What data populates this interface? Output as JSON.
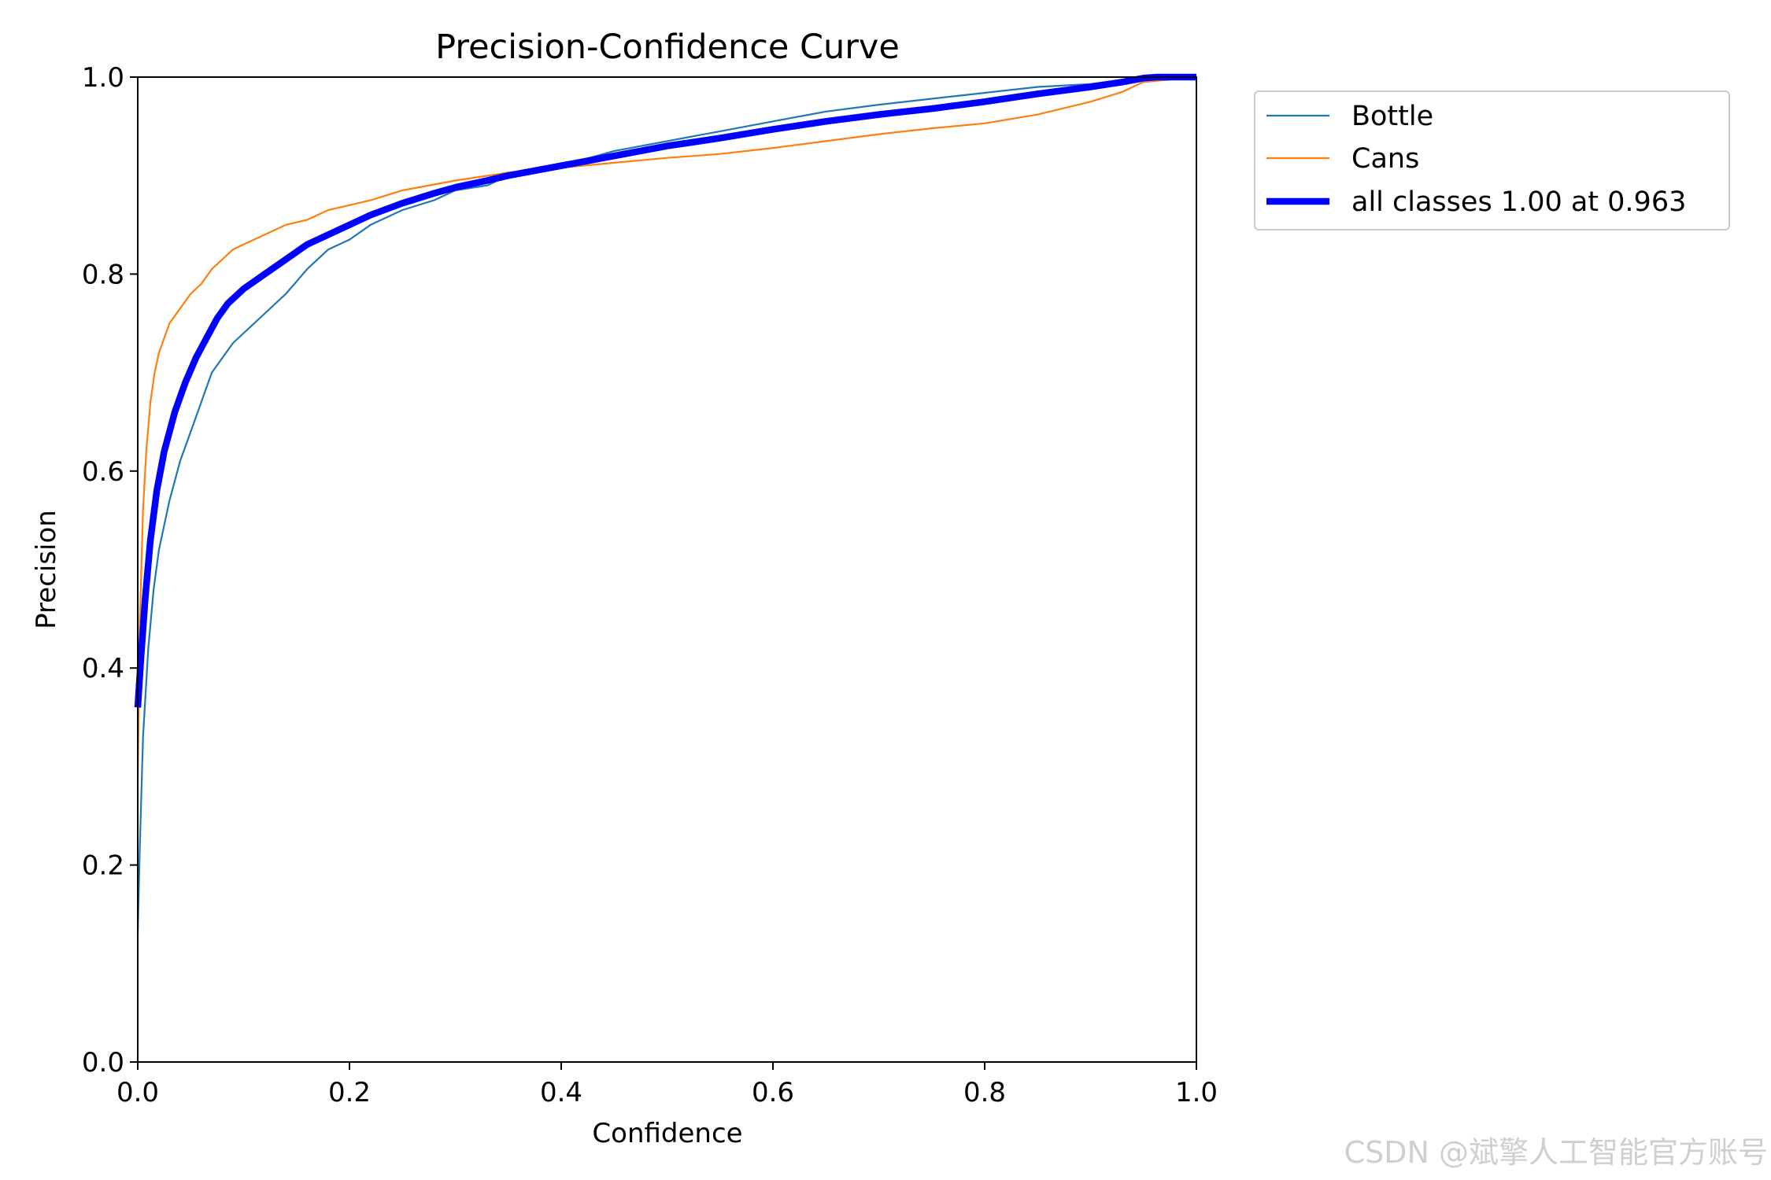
{
  "chart_data": {
    "type": "line",
    "title": "Precision-Confidence Curve",
    "xlabel": "Confidence",
    "ylabel": "Precision",
    "xlim": [
      0.0,
      1.0
    ],
    "ylim": [
      0.0,
      1.0
    ],
    "xticks": [
      "0.0",
      "0.2",
      "0.4",
      "0.6",
      "0.8",
      "1.0"
    ],
    "yticks": [
      "0.0",
      "0.2",
      "0.4",
      "0.6",
      "0.8",
      "1.0"
    ],
    "grid": false,
    "legend_position": "outside-top-right",
    "series": [
      {
        "name": "Bottle",
        "color": "#1f77b4",
        "x": [
          0.0,
          0.002,
          0.005,
          0.01,
          0.015,
          0.02,
          0.03,
          0.04,
          0.05,
          0.06,
          0.07,
          0.08,
          0.09,
          0.1,
          0.12,
          0.14,
          0.16,
          0.18,
          0.2,
          0.22,
          0.25,
          0.28,
          0.3,
          0.33,
          0.35,
          0.4,
          0.45,
          0.5,
          0.55,
          0.6,
          0.65,
          0.7,
          0.75,
          0.8,
          0.85,
          0.9,
          0.93,
          0.95,
          1.0
        ],
        "y": [
          0.13,
          0.22,
          0.33,
          0.42,
          0.48,
          0.52,
          0.57,
          0.61,
          0.64,
          0.67,
          0.7,
          0.715,
          0.73,
          0.74,
          0.76,
          0.78,
          0.805,
          0.825,
          0.835,
          0.85,
          0.865,
          0.875,
          0.885,
          0.89,
          0.9,
          0.91,
          0.925,
          0.935,
          0.945,
          0.955,
          0.965,
          0.972,
          0.978,
          0.984,
          0.99,
          0.993,
          0.997,
          1.0,
          1.0
        ]
      },
      {
        "name": "Cans",
        "color": "#ff7f0e",
        "x": [
          0.0,
          0.002,
          0.005,
          0.008,
          0.012,
          0.016,
          0.02,
          0.03,
          0.04,
          0.05,
          0.06,
          0.07,
          0.08,
          0.09,
          0.1,
          0.12,
          0.14,
          0.16,
          0.18,
          0.2,
          0.22,
          0.25,
          0.3,
          0.35,
          0.4,
          0.45,
          0.5,
          0.55,
          0.6,
          0.65,
          0.7,
          0.75,
          0.8,
          0.85,
          0.9,
          0.93,
          0.95,
          1.0
        ],
        "y": [
          0.29,
          0.45,
          0.56,
          0.62,
          0.67,
          0.7,
          0.72,
          0.75,
          0.765,
          0.78,
          0.79,
          0.805,
          0.815,
          0.825,
          0.83,
          0.84,
          0.85,
          0.855,
          0.865,
          0.87,
          0.875,
          0.885,
          0.895,
          0.903,
          0.908,
          0.913,
          0.918,
          0.922,
          0.928,
          0.935,
          0.942,
          0.948,
          0.953,
          0.962,
          0.975,
          0.985,
          0.995,
          1.0
        ]
      },
      {
        "name": "all classes 1.00 at 0.963",
        "color": "#0000ff",
        "x": [
          0.0,
          0.003,
          0.007,
          0.012,
          0.018,
          0.025,
          0.035,
          0.045,
          0.055,
          0.065,
          0.075,
          0.085,
          0.1,
          0.12,
          0.14,
          0.16,
          0.18,
          0.2,
          0.22,
          0.25,
          0.28,
          0.3,
          0.33,
          0.35,
          0.4,
          0.45,
          0.5,
          0.55,
          0.6,
          0.65,
          0.7,
          0.75,
          0.8,
          0.85,
          0.9,
          0.93,
          0.95,
          0.963,
          1.0
        ],
        "y": [
          0.36,
          0.41,
          0.47,
          0.53,
          0.58,
          0.62,
          0.66,
          0.69,
          0.715,
          0.735,
          0.755,
          0.77,
          0.785,
          0.8,
          0.815,
          0.83,
          0.84,
          0.85,
          0.86,
          0.872,
          0.882,
          0.888,
          0.895,
          0.9,
          0.91,
          0.92,
          0.93,
          0.938,
          0.947,
          0.955,
          0.962,
          0.968,
          0.975,
          0.983,
          0.99,
          0.995,
          0.999,
          1.0,
          1.0
        ]
      }
    ]
  },
  "watermark": "CSDN @斌擎人工智能官方账号"
}
